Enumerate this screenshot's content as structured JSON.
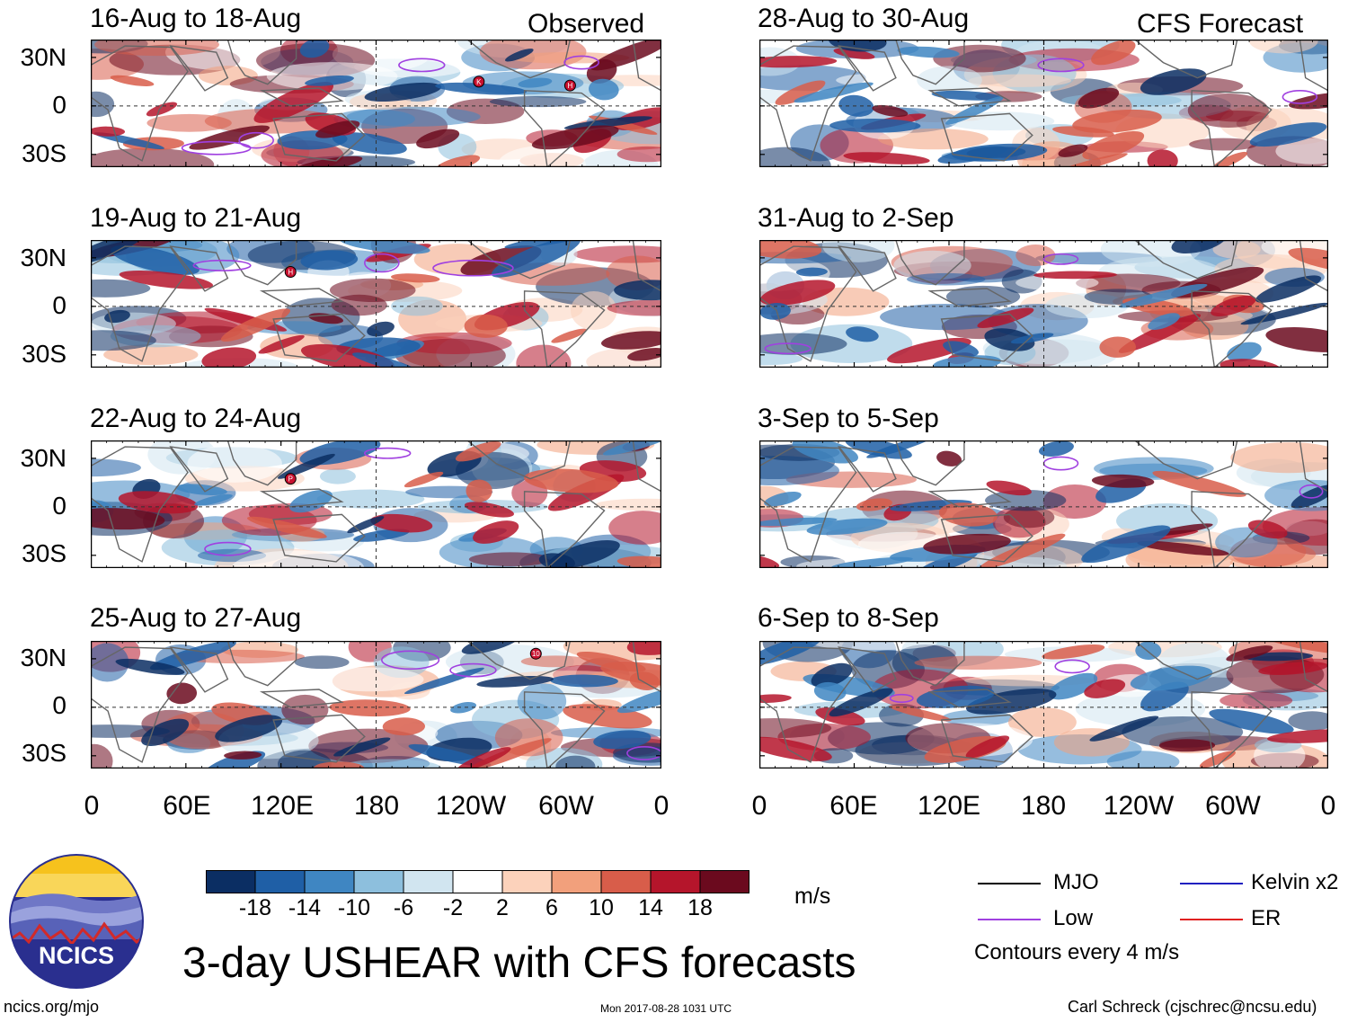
{
  "header": {
    "observed_tag": "Observed",
    "forecast_tag": "CFS Forecast"
  },
  "panels": {
    "left": [
      {
        "title": "16-Aug to 18-Aug"
      },
      {
        "title": "19-Aug to 21-Aug"
      },
      {
        "title": "22-Aug to 24-Aug"
      },
      {
        "title": "25-Aug to 27-Aug"
      }
    ],
    "right": [
      {
        "title": "28-Aug to 30-Aug"
      },
      {
        "title": "31-Aug to 2-Sep"
      },
      {
        "title": "3-Sep to 5-Sep"
      },
      {
        "title": "6-Sep to 8-Sep"
      }
    ]
  },
  "axes": {
    "lat_labels": [
      "30N",
      "0",
      "30S"
    ],
    "lon_labels": [
      "0",
      "60E",
      "120E",
      "180",
      "120W",
      "60W",
      "0"
    ]
  },
  "storms": [
    {
      "panel": 0,
      "label": "K"
    },
    {
      "panel": 0,
      "label": "H"
    },
    {
      "panel": 1,
      "label": "H"
    },
    {
      "panel": 2,
      "label": "P"
    },
    {
      "panel": 3,
      "label": "10"
    }
  ],
  "colorbar": {
    "labels": [
      "-18",
      "-14",
      "-10",
      "-6",
      "-2",
      "2",
      "6",
      "10",
      "14",
      "18"
    ],
    "colors": [
      "#0b2e63",
      "#1f5fa6",
      "#3f86c2",
      "#8dbfdd",
      "#d1e5f0",
      "#ffffff",
      "#fcd2bb",
      "#f2a07c",
      "#d85d4a",
      "#b5152b",
      "#6b0a1e"
    ],
    "units": "m/s"
  },
  "legend": {
    "mjo": "MJO",
    "low": "Low",
    "kelvin": "Kelvin x2",
    "er": "ER",
    "note": "Contours every 4 m/s",
    "colors": {
      "mjo": "#000000",
      "low": "#a040e0",
      "kelvin": "#2020c0",
      "er": "#e02020"
    }
  },
  "footer": {
    "main_title": "3-day USHEAR with CFS forecasts",
    "url": "ncics.org/mjo",
    "timestamp": "Mon 2017-08-28 1031 UTC",
    "author": "Carl Schreck (cjschrec@ncsu.edu)",
    "logo_text": "NCICS"
  }
}
